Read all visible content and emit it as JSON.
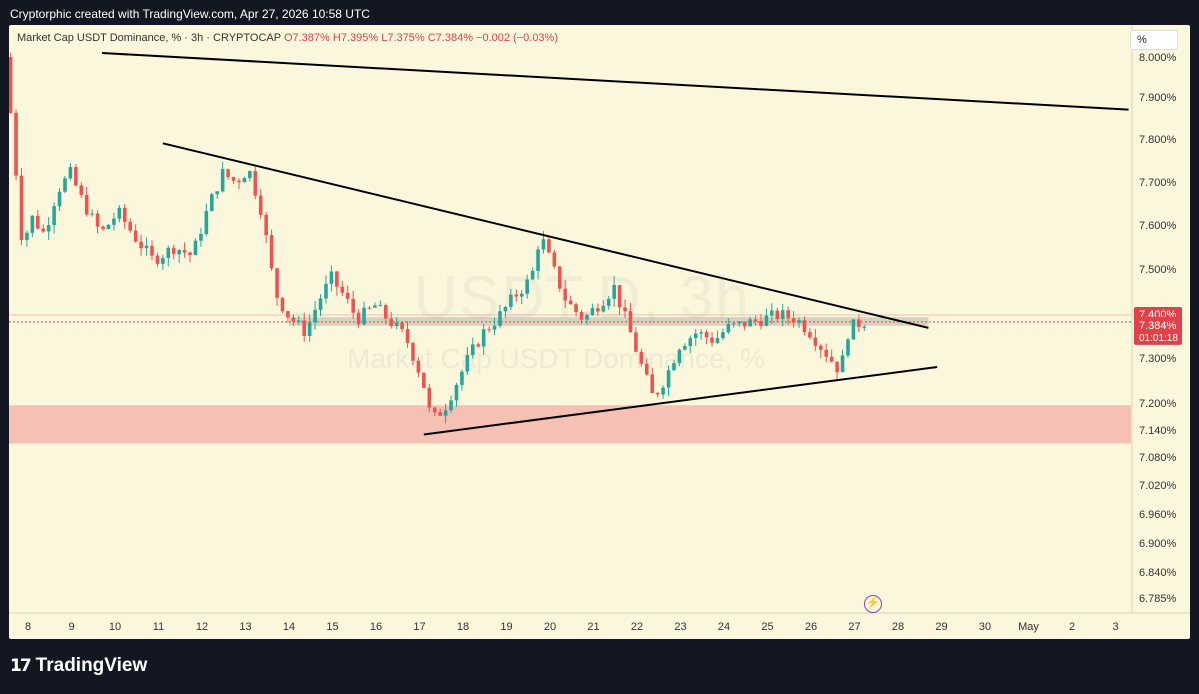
{
  "caption": "Cryptorphic created with TradingView.com, Apr 27, 2026 10:58 UTC",
  "legend": {
    "title": "Market Cap USDT Dominance, % · 3h · CRYPTOCAP",
    "open": "O7.387%",
    "high": "H7.395%",
    "low": "L7.375%",
    "close": "C7.384%",
    "change": "−0.002 (−0.03%)"
  },
  "axis_unit": "%",
  "watermark": {
    "symbol": "USDT.D, 3h",
    "name": "Market Cap USDT Dominance, %"
  },
  "branding": "TradingView",
  "icons": {
    "alert": "bolt-icon",
    "logo": "tradingview-logo-icon"
  },
  "colors": {
    "up": "#26a69a",
    "down": "#ef5350",
    "background": "#fbf7dd",
    "support_zone": "#f3b7ae",
    "price_label": "#e0424a"
  },
  "chart_data": {
    "type": "candlestick",
    "timeframe": "3h",
    "ylim": [
      6.76,
      8.04
    ],
    "y_ticks": [
      "8.000%",
      "7.900%",
      "7.800%",
      "7.700%",
      "7.600%",
      "7.500%",
      "7.400%",
      "7.300%",
      "7.200%",
      "7.140%",
      "7.080%",
      "7.020%",
      "6.960%",
      "6.900%",
      "6.840%",
      "6.785%"
    ],
    "y_tick_values": [
      8.0,
      7.9,
      7.8,
      7.7,
      7.6,
      7.5,
      7.4,
      7.3,
      7.2,
      7.14,
      7.08,
      7.02,
      6.96,
      6.9,
      6.84,
      6.785
    ],
    "x_ticks": [
      "8",
      "9",
      "10",
      "11",
      "12",
      "13",
      "14",
      "15",
      "16",
      "17",
      "18",
      "19",
      "20",
      "21",
      "22",
      "23",
      "24",
      "25",
      "26",
      "27",
      "28",
      "29",
      "30",
      "May",
      "2",
      "3"
    ],
    "x_tick_days": [
      8,
      9,
      10,
      11,
      12,
      13,
      14,
      15,
      16,
      17,
      18,
      19,
      20,
      21,
      22,
      23,
      24,
      25,
      26,
      27,
      28,
      29,
      30,
      31,
      32,
      33
    ],
    "x_range_days": [
      7.6,
      33.4
    ],
    "current_price": {
      "value": 7.384,
      "label": "7.384%",
      "countdown": "01:01:18"
    },
    "level_label": {
      "value": 7.4,
      "label": "7.400%"
    },
    "support_zone": [
      7.11,
      7.195
    ],
    "consolidation_band": [
      7.375,
      7.395
    ],
    "trendlines": [
      {
        "name": "long-term-resistance",
        "from": [
          9.7,
          8.01
        ],
        "to": [
          33.3,
          7.87
        ]
      },
      {
        "name": "descending-resistance",
        "from": [
          11.1,
          7.79
        ],
        "to": [
          28.7,
          7.37
        ]
      },
      {
        "name": "ascending-support",
        "from": [
          17.1,
          7.13
        ],
        "to": [
          28.9,
          7.28
        ]
      }
    ],
    "path_points": [
      [
        7.6,
        8.0
      ],
      [
        7.8,
        7.78
      ],
      [
        8.0,
        7.55
      ],
      [
        8.2,
        7.62
      ],
      [
        8.5,
        7.58
      ],
      [
        8.8,
        7.68
      ],
      [
        9.1,
        7.72
      ],
      [
        9.4,
        7.65
      ],
      [
        9.8,
        7.58
      ],
      [
        10.2,
        7.63
      ],
      [
        10.6,
        7.57
      ],
      [
        11.0,
        7.52
      ],
      [
        11.5,
        7.55
      ],
      [
        11.9,
        7.53
      ],
      [
        12.3,
        7.65
      ],
      [
        12.6,
        7.72
      ],
      [
        12.9,
        7.7
      ],
      [
        13.2,
        7.73
      ],
      [
        13.5,
        7.63
      ],
      [
        13.8,
        7.45
      ],
      [
        14.1,
        7.4
      ],
      [
        14.5,
        7.36
      ],
      [
        14.8,
        7.43
      ],
      [
        15.1,
        7.48
      ],
      [
        15.4,
        7.44
      ],
      [
        15.7,
        7.39
      ],
      [
        16.1,
        7.42
      ],
      [
        16.5,
        7.38
      ],
      [
        16.8,
        7.35
      ],
      [
        17.2,
        7.25
      ],
      [
        17.4,
        7.16
      ],
      [
        17.7,
        7.19
      ],
      [
        18.0,
        7.25
      ],
      [
        18.3,
        7.31
      ],
      [
        18.6,
        7.36
      ],
      [
        18.9,
        7.39
      ],
      [
        19.3,
        7.44
      ],
      [
        19.7,
        7.48
      ],
      [
        19.9,
        7.58
      ],
      [
        20.2,
        7.5
      ],
      [
        20.5,
        7.43
      ],
      [
        20.9,
        7.39
      ],
      [
        21.2,
        7.42
      ],
      [
        21.6,
        7.46
      ],
      [
        21.9,
        7.38
      ],
      [
        22.2,
        7.29
      ],
      [
        22.5,
        7.21
      ],
      [
        22.8,
        7.26
      ],
      [
        23.1,
        7.33
      ],
      [
        23.5,
        7.36
      ],
      [
        23.9,
        7.34
      ],
      [
        24.2,
        7.37
      ],
      [
        24.6,
        7.38
      ],
      [
        25.0,
        7.39
      ],
      [
        25.4,
        7.4
      ],
      [
        25.8,
        7.39
      ],
      [
        26.1,
        7.36
      ],
      [
        26.4,
        7.32
      ],
      [
        26.8,
        7.27
      ],
      [
        27.0,
        7.37
      ],
      [
        27.3,
        7.384
      ]
    ]
  }
}
